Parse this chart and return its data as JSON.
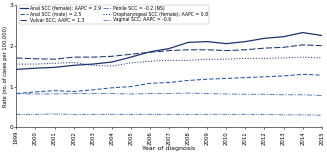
{
  "years": [
    1999,
    2000,
    2001,
    2002,
    2003,
    2004,
    2005,
    2006,
    2007,
    2008,
    2009,
    2010,
    2011,
    2012,
    2013,
    2014,
    2015
  ],
  "anal_scc_female": [
    1.42,
    1.45,
    1.47,
    1.52,
    1.55,
    1.6,
    1.72,
    1.85,
    1.93,
    2.08,
    2.1,
    2.05,
    2.1,
    2.18,
    2.22,
    2.32,
    2.25
  ],
  "vulvar_scc": [
    1.7,
    1.68,
    1.67,
    1.72,
    1.72,
    1.74,
    1.79,
    1.84,
    1.88,
    1.9,
    1.9,
    1.88,
    1.9,
    1.94,
    1.96,
    2.02,
    2.0
  ],
  "oropharyngeal_scc_female": [
    1.55,
    1.55,
    1.57,
    1.59,
    1.52,
    1.5,
    1.58,
    1.62,
    1.64,
    1.64,
    1.67,
    1.67,
    1.69,
    1.69,
    1.7,
    1.72,
    1.7
  ],
  "anal_scc_male": [
    0.83,
    0.87,
    0.9,
    0.88,
    0.92,
    0.97,
    1.0,
    1.08,
    1.1,
    1.15,
    1.18,
    1.2,
    1.22,
    1.24,
    1.26,
    1.3,
    1.28
  ],
  "penile_scc": [
    0.83,
    0.82,
    0.82,
    0.83,
    0.83,
    0.83,
    0.82,
    0.83,
    0.83,
    0.84,
    0.83,
    0.82,
    0.81,
    0.81,
    0.8,
    0.8,
    0.78
  ],
  "vaginal_scc": [
    0.32,
    0.32,
    0.33,
    0.32,
    0.32,
    0.32,
    0.32,
    0.32,
    0.32,
    0.32,
    0.32,
    0.32,
    0.32,
    0.32,
    0.31,
    0.31,
    0.3
  ],
  "color_dark": "#1a3472",
  "color_mid": "#2255aa",
  "color_light": "#6688bb",
  "ylim": [
    0,
    3
  ],
  "yticks": [
    0,
    1,
    2,
    3
  ],
  "xlabel": "Year of diagnosis",
  "ylabel": "Rate (no. of cases per 100,000)",
  "legend_labels": [
    "Anal SCC (female); AAPC = 2.9",
    "Vulvar SCC; AAPC = 1.3",
    "Oropharyngeal SCC (female); AAPC = 0.8",
    "Anal SCC (male) = 2.5",
    "Penile SCC = -0.2 (NS)",
    "Vaginal SCC; AAPC = -0.6"
  ],
  "font_size": 4.2,
  "figsize": [
    3.27,
    1.54
  ],
  "dpi": 100
}
